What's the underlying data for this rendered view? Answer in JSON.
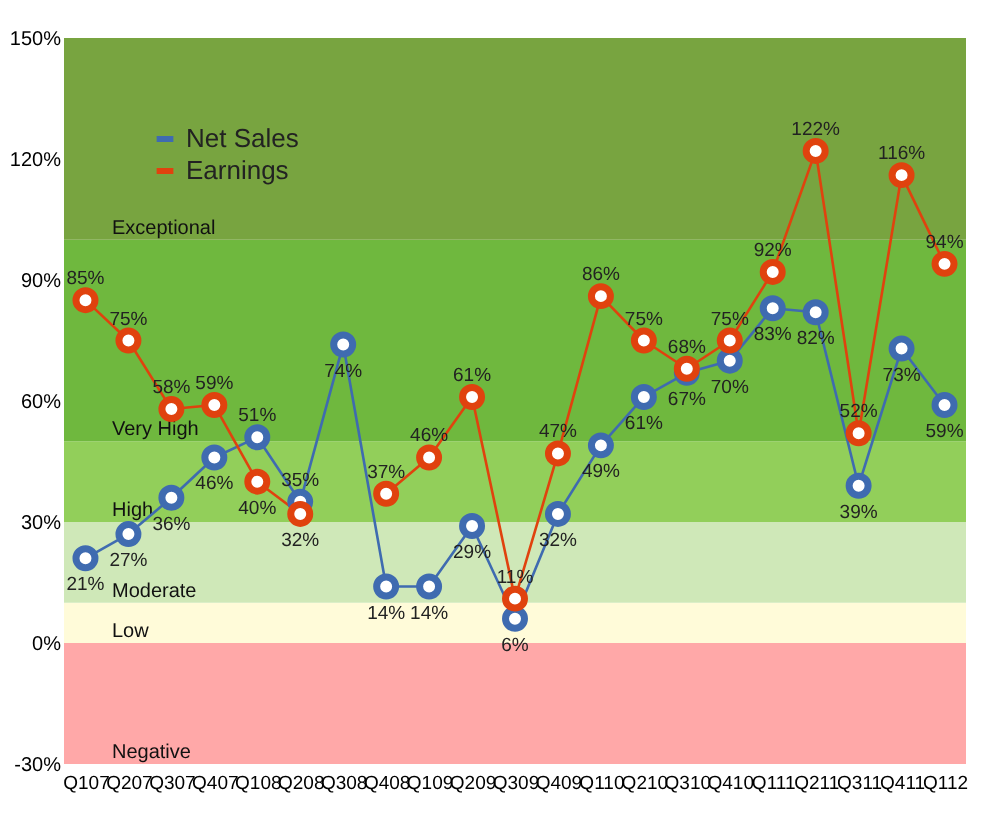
{
  "chart_data": {
    "type": "line",
    "categories": [
      "Q107",
      "Q207",
      "Q307",
      "Q407",
      "Q108",
      "Q208",
      "Q308",
      "Q408",
      "Q109",
      "Q209",
      "Q309",
      "Q409",
      "Q110",
      "Q210",
      "Q310",
      "Q410",
      "Q111",
      "Q211",
      "Q311",
      "Q411",
      "Q112"
    ],
    "series": [
      {
        "name": "Net Sales",
        "color": "#3f6bb0",
        "values": [
          21,
          27,
          36,
          46,
          51,
          35,
          74,
          14,
          14,
          29,
          6,
          32,
          49,
          61,
          67,
          70,
          83,
          82,
          39,
          73,
          59
        ],
        "value_labels": [
          "21%",
          "27%",
          "36%",
          "46%",
          "51%",
          "35%",
          "74%",
          "14%",
          "14%",
          "29%",
          "6%",
          "32%",
          "49%",
          "61%",
          "67%",
          "70%",
          "83%",
          "82%",
          "39%",
          "73%",
          "59%"
        ]
      },
      {
        "name": "Earnings",
        "color": "#e0420e",
        "values": [
          85,
          75,
          58,
          59,
          40,
          32,
          null,
          37,
          46,
          61,
          11,
          47,
          86,
          75,
          68,
          75,
          92,
          122,
          52,
          116,
          94
        ],
        "value_labels": [
          "85%",
          "75%",
          "58%",
          "59%",
          "40%",
          "32%",
          null,
          "37%",
          "46%",
          "61%",
          "11%",
          "47%",
          "86%",
          "75%",
          "68%",
          "75%",
          "92%",
          "122%",
          "52%",
          "116%",
          "94%"
        ]
      }
    ],
    "ylim": [
      -30,
      150
    ],
    "yticks": [
      {
        "value": -30,
        "label": "-30%"
      },
      {
        "value": 0,
        "label": "0%"
      },
      {
        "value": 30,
        "label": "30%"
      },
      {
        "value": 60,
        "label": "60%"
      },
      {
        "value": 90,
        "label": "90%"
      },
      {
        "value": 120,
        "label": "120%"
      },
      {
        "value": 150,
        "label": "150%"
      }
    ],
    "bands": [
      {
        "axis": "y",
        "from": -30,
        "to": 0,
        "label": "Negative",
        "color": "#ffa8a8"
      },
      {
        "axis": "y",
        "from": 0,
        "to": 10,
        "label": "Low",
        "color": "#fffbd9"
      },
      {
        "axis": "y",
        "from": 10,
        "to": 30,
        "label": "Moderate",
        "color": "#cfe8b8"
      },
      {
        "axis": "y",
        "from": 30,
        "to": 50,
        "label": "High",
        "color": "#92cf5a"
      },
      {
        "axis": "y",
        "from": 50,
        "to": 100,
        "label": "Very High",
        "color": "#6fb83e"
      },
      {
        "axis": "y",
        "from": 100,
        "to": 150,
        "label": "Exceptional",
        "color": "#78a440"
      }
    ],
    "grid": false,
    "legend": "top left",
    "marker": "circle",
    "line_style": "solid"
  }
}
